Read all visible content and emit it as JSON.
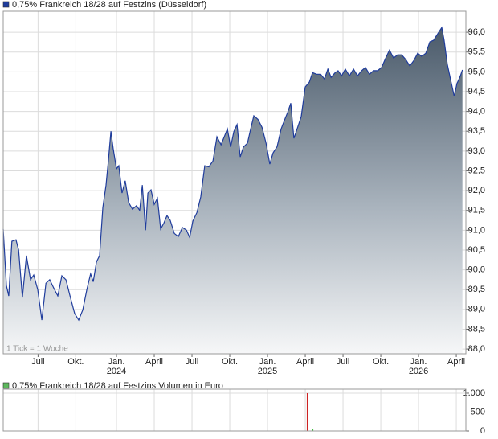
{
  "chart_data": [
    {
      "type": "area",
      "note": "1 Tick = 1 Woche",
      "xlim": [
        0,
        159.3
      ],
      "xticks": [
        {
          "value": 12,
          "label": "Juli"
        },
        {
          "value": 25,
          "label": "Okt."
        },
        {
          "value": 39,
          "label": "Jan."
        },
        {
          "value": 52,
          "label": "April"
        },
        {
          "value": 65,
          "label": "Juli"
        },
        {
          "value": 78,
          "label": "Okt."
        },
        {
          "value": 91,
          "label": "Jan."
        },
        {
          "value": 104,
          "label": "April"
        },
        {
          "value": 117,
          "label": "Juli"
        },
        {
          "value": 130,
          "label": "Okt."
        },
        {
          "value": 143,
          "label": "Jan."
        },
        {
          "value": 156,
          "label": "April"
        }
      ],
      "xtick_years": [
        {
          "value": 39,
          "label": "2024"
        },
        {
          "value": 91,
          "label": "2025"
        },
        {
          "value": 143,
          "label": "2026"
        }
      ],
      "ylim": [
        87.88,
        96.53
      ],
      "yticks": [
        {
          "value": 88,
          "label": "88,0"
        },
        {
          "value": 88.5,
          "label": "88,5"
        },
        {
          "value": 89,
          "label": "89,0"
        },
        {
          "value": 89.5,
          "label": "89,5"
        },
        {
          "value": 90,
          "label": "90,0"
        },
        {
          "value": 90.5,
          "label": "90,5"
        },
        {
          "value": 91,
          "label": "91,0"
        },
        {
          "value": 91.5,
          "label": "91,5"
        },
        {
          "value": 92,
          "label": "92,0"
        },
        {
          "value": 92.5,
          "label": "92,5"
        },
        {
          "value": 93,
          "label": "93,0"
        },
        {
          "value": 93.5,
          "label": "93,5"
        },
        {
          "value": 94,
          "label": "94,0"
        },
        {
          "value": 94.5,
          "label": "94,5"
        },
        {
          "value": 95,
          "label": "95,0"
        },
        {
          "value": 95.5,
          "label": "95,5"
        },
        {
          "value": 96,
          "label": "96,0"
        }
      ],
      "grid": true,
      "series": [
        {
          "name": "0,75% Frankreich 18/28 auf Festzins (Düsseldorf)",
          "color": "#1f3c9c",
          "x": [
            0,
            1.1,
            1.9,
            3.0,
            4.4,
            5.3,
            6.6,
            8.0,
            9.4,
            10.5,
            11.9,
            13.3,
            14.7,
            16.0,
            17.4,
            18.8,
            20.2,
            21.6,
            23.0,
            24.6,
            26.0,
            27.4,
            28.8,
            30.1,
            31.0,
            32.1,
            33.2,
            34.3,
            35.4,
            36.2,
            37.1,
            37.9,
            39.0,
            39.8,
            40.9,
            42.0,
            43.2,
            44.5,
            45.9,
            47.0,
            47.9,
            49.0,
            49.8,
            50.9,
            52.0,
            53.1,
            54.2,
            55.3,
            56.4,
            57.5,
            58.9,
            60.3,
            61.7,
            63.1,
            64.2,
            65.3,
            66.7,
            68.0,
            69.4,
            70.8,
            72.2,
            73.6,
            75.0,
            76.1,
            77.2,
            78.3,
            79.4,
            80.5,
            81.6,
            82.7,
            84.1,
            85.2,
            86.3,
            87.7,
            89.1,
            90.5,
            91.8,
            92.9,
            94.3,
            95.7,
            96.8,
            97.9,
            99.0,
            100.1,
            101.2,
            102.6,
            104.0,
            105.4,
            106.5,
            107.9,
            109.3,
            110.6,
            111.8,
            112.9,
            114.3,
            115.3,
            116.5,
            117.8,
            119.2,
            120.6,
            122.0,
            123.4,
            124.7,
            126.1,
            127.5,
            128.9,
            130.3,
            131.7,
            133.0,
            134.4,
            135.8,
            137.2,
            138.6,
            140.0,
            141.4,
            142.7,
            144.1,
            145.5,
            146.9,
            148.2,
            149.6,
            151.0,
            151.8,
            152.9,
            154.0,
            155.3,
            156.2,
            157.3,
            158.1
          ],
          "values": [
            91.03,
            89.6,
            89.34,
            90.72,
            90.76,
            90.5,
            89.3,
            90.36,
            89.75,
            89.87,
            89.5,
            88.73,
            89.66,
            89.75,
            89.54,
            89.34,
            89.85,
            89.75,
            89.34,
            88.9,
            88.73,
            88.99,
            89.5,
            89.9,
            89.7,
            90.2,
            90.36,
            91.57,
            92.14,
            92.75,
            93.5,
            93.05,
            92.55,
            92.63,
            91.94,
            92.25,
            91.7,
            91.53,
            91.62,
            91.5,
            92.14,
            91.0,
            91.94,
            92.02,
            91.65,
            91.81,
            91.03,
            91.18,
            91.37,
            91.25,
            90.92,
            90.84,
            91.07,
            91.0,
            90.82,
            91.23,
            91.45,
            91.84,
            92.63,
            92.6,
            92.75,
            93.36,
            93.16,
            93.36,
            93.56,
            93.1,
            93.49,
            93.67,
            92.85,
            93.1,
            93.2,
            93.56,
            93.89,
            93.8,
            93.6,
            93.2,
            92.67,
            92.95,
            93.11,
            93.56,
            93.77,
            93.97,
            94.21,
            93.32,
            93.56,
            93.87,
            94.62,
            94.74,
            94.98,
            94.94,
            94.94,
            94.82,
            95.07,
            94.86,
            94.98,
            95.03,
            94.9,
            95.07,
            94.9,
            95.07,
            94.9,
            95.03,
            95.11,
            94.94,
            95.03,
            95.03,
            95.11,
            95.35,
            95.55,
            95.35,
            95.43,
            95.43,
            95.31,
            95.15,
            95.29,
            95.47,
            95.39,
            95.47,
            95.76,
            95.8,
            95.96,
            96.12,
            95.8,
            95.19,
            94.82,
            94.38,
            94.7,
            94.88,
            95.05
          ]
        }
      ]
    },
    {
      "type": "bar",
      "xlim": [
        0,
        159.3
      ],
      "ylim": [
        0,
        1106
      ],
      "yticks": [
        0,
        500,
        {
          "value": 1000,
          "label": "1.000"
        }
      ],
      "grid": true,
      "series": [
        {
          "name": "0,75% Frankreich 18/28 auf Festzins Volumen in Euro",
          "color": "#5cb85c",
          "x": [
            104.8,
            106.5
          ],
          "values": [
            1000,
            60
          ],
          "colors": [
            "#cc2222",
            "#44bb44"
          ]
        }
      ]
    }
  ]
}
